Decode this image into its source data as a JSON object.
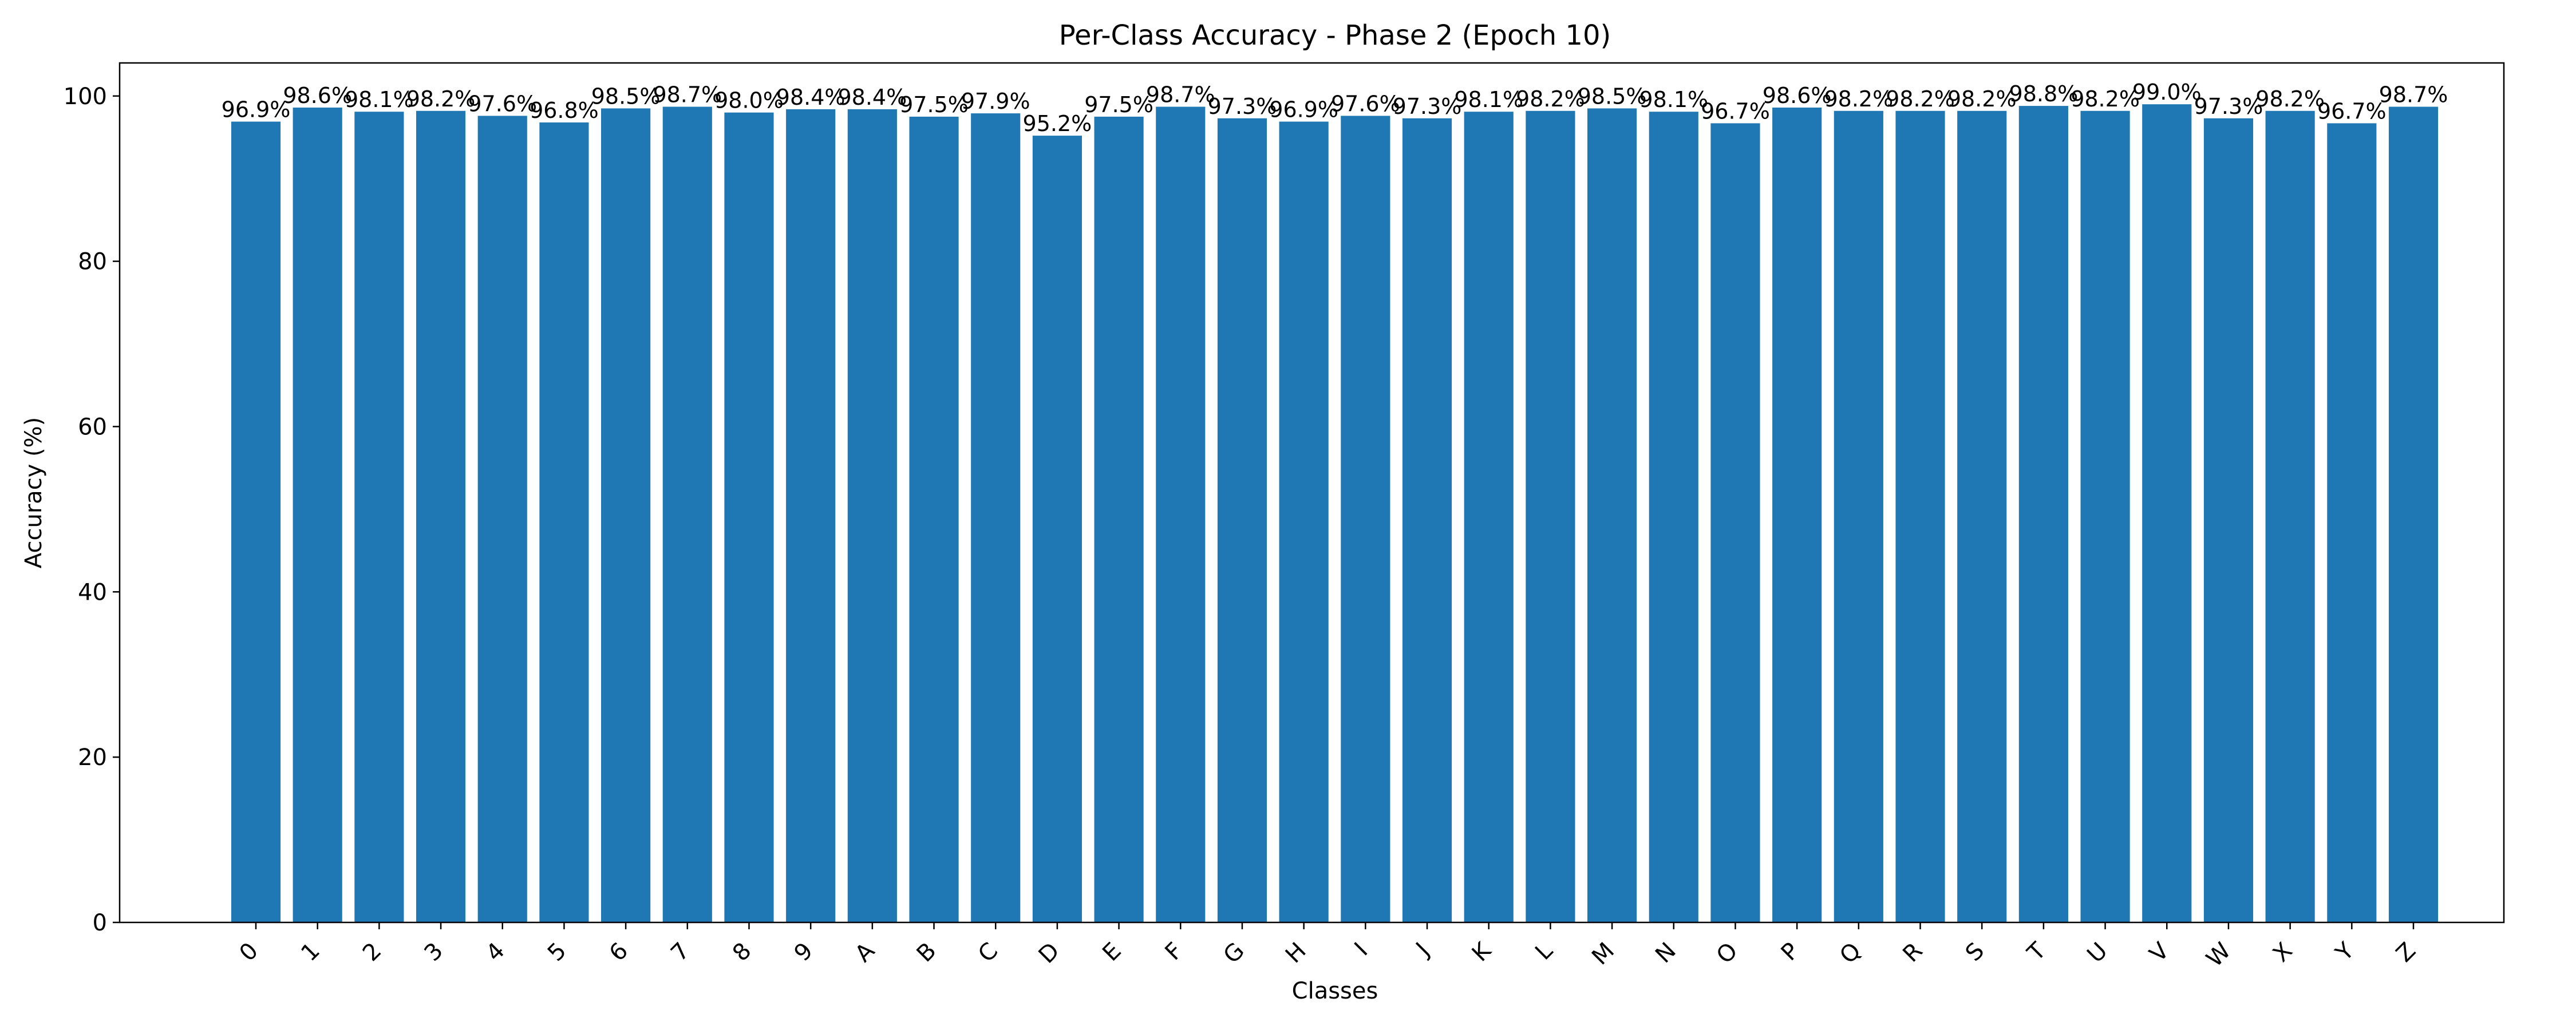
{
  "chart_data": {
    "type": "bar",
    "title": "Per-Class Accuracy - Phase 2 (Epoch 10)",
    "xlabel": "Classes",
    "ylabel": "Accuracy (%)",
    "ylim": [
      0,
      104
    ],
    "yticks": [
      0,
      20,
      40,
      60,
      80,
      100
    ],
    "grid": false,
    "legend": "none",
    "bar_color": "#1f77b4",
    "categories": [
      "0",
      "1",
      "2",
      "3",
      "4",
      "5",
      "6",
      "7",
      "8",
      "9",
      "A",
      "B",
      "C",
      "D",
      "E",
      "F",
      "G",
      "H",
      "I",
      "J",
      "K",
      "L",
      "M",
      "N",
      "O",
      "P",
      "Q",
      "R",
      "S",
      "T",
      "U",
      "V",
      "W",
      "X",
      "Y",
      "Z"
    ],
    "values": [
      96.9,
      98.6,
      98.1,
      98.2,
      97.6,
      96.8,
      98.5,
      98.7,
      98.0,
      98.4,
      98.4,
      97.5,
      97.9,
      95.2,
      97.5,
      98.7,
      97.3,
      96.9,
      97.6,
      97.3,
      98.1,
      98.2,
      98.5,
      98.1,
      96.7,
      98.6,
      98.2,
      98.2,
      98.2,
      98.8,
      98.2,
      99.0,
      97.3,
      98.2,
      96.7,
      98.7
    ],
    "value_label_suffix": "%"
  }
}
